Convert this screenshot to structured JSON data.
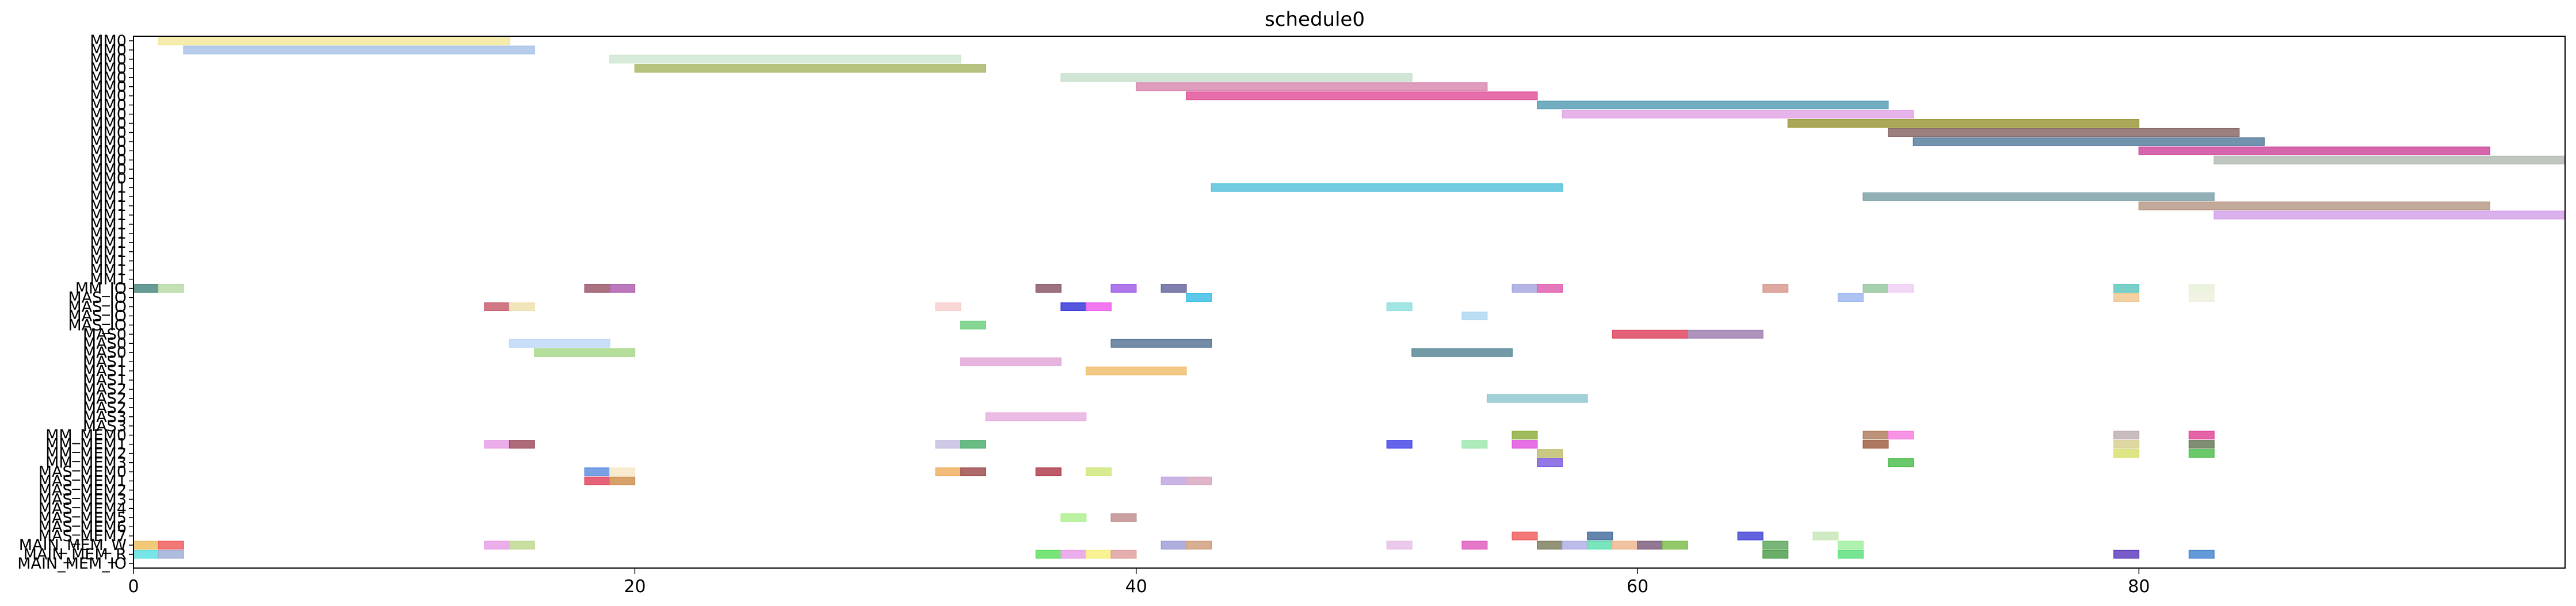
{
  "chart_data": {
    "type": "gantt",
    "title": "schedule0",
    "xlabel": "",
    "ylabel": "",
    "xlim": [
      0,
      97
    ],
    "x_ticks": [
      0,
      20,
      40,
      60,
      80
    ],
    "grid": false,
    "rows": [
      "MM0",
      "MM0",
      "MM0",
      "MM0",
      "MM0",
      "MM0",
      "MM0",
      "MM0",
      "MM0",
      "MM0",
      "MM0",
      "MM0",
      "MM0",
      "MM0",
      "MM0",
      "MM0",
      "MM1",
      "MM1",
      "MM1",
      "MM1",
      "MM1",
      "MM1",
      "MM1",
      "MM1",
      "MM1",
      "MM1",
      "MM1",
      "MM_IO",
      "MAS_IO",
      "MAS_IO",
      "MAS_IO",
      "MAS_IO",
      "MAS0",
      "MAS0",
      "MAS0",
      "MAS1",
      "MAS1",
      "MAS1",
      "MAS2",
      "MAS2",
      "MAS2",
      "MAS3",
      "MAS3",
      "MM_MEM0",
      "MM_MEM1",
      "MM_MEM2",
      "MM_MEM3",
      "MAS_MEM0",
      "MAS_MEM1",
      "MAS_MEM2",
      "MAS_MEM3",
      "MAS_MEM4",
      "MAS_MEM5",
      "MAS_MEM6",
      "MAS_MEM7",
      "MAIN_MEM_W",
      "MAIN_MEM_R",
      "MAIN_MEM_IO"
    ],
    "row_labels_visible": [
      "MM0",
      "MM0",
      "MM0",
      "MM0",
      "MM0",
      "MM0",
      "MM0",
      "MM0",
      "MM0",
      "MM0",
      "MM0",
      "MM0",
      "MM0",
      "MM0",
      "MM0",
      "MM0",
      "MM1",
      "MM1",
      "MM1",
      "MM1",
      "MM1",
      "MM1",
      "MM1",
      "MM1",
      "MM1",
      "MM1",
      "MM1",
      "MM_IO",
      "MAS_IO",
      "MAS_IO",
      "MAS_IO",
      "MAS_IO",
      "MAS0",
      "MAS0",
      "MAS0",
      "MAS1",
      "MAS1",
      "MAS1",
      "MAS2",
      "MAS2",
      "MAS2",
      "MAS3",
      "MAS3",
      "MM_MEM0",
      "MM_MEM1",
      "MM_MEM2",
      "MM_MEM3",
      "MAS_MEM0",
      "MAS_MEM1",
      "MAS_MEM2",
      "MAS_MEM3",
      "MAS_MEM4",
      "MAS_MEM5",
      "MAS_MEM6",
      "MAS_MEM7",
      "MAIN_MEM_W",
      "MAIN_MEM_R",
      "MAIN_MEM_IO"
    ],
    "bars": [
      {
        "row": 0,
        "start": 1,
        "end": 15,
        "color": "#f4e9a0"
      },
      {
        "row": 1,
        "start": 2,
        "end": 16,
        "color": "#a9c3e6"
      },
      {
        "row": 2,
        "start": 19,
        "end": 33,
        "color": "#cfe8d2"
      },
      {
        "row": 3,
        "start": 20,
        "end": 34,
        "color": "#a9b86a"
      },
      {
        "row": 4,
        "start": 37,
        "end": 51,
        "color": "#c8e0cc"
      },
      {
        "row": 5,
        "start": 40,
        "end": 54,
        "color": "#d98bb0"
      },
      {
        "row": 6,
        "start": 42,
        "end": 56,
        "color": "#e0559c"
      },
      {
        "row": 7,
        "start": 56,
        "end": 70,
        "color": "#5a9fb6"
      },
      {
        "row": 8,
        "start": 57,
        "end": 71,
        "color": "#e3a6e8"
      },
      {
        "row": 9,
        "start": 66,
        "end": 80,
        "color": "#9c9a3c"
      },
      {
        "row": 10,
        "start": 70,
        "end": 84,
        "color": "#8a6a6a"
      },
      {
        "row": 11,
        "start": 71,
        "end": 85,
        "color": "#5b7fa0"
      },
      {
        "row": 12,
        "start": 80,
        "end": 94,
        "color": "#cf4b9e"
      },
      {
        "row": 13,
        "start": 83,
        "end": 97,
        "color": "#b4bcb4"
      },
      {
        "row": 16,
        "start": 43,
        "end": 57,
        "color": "#58c3dc"
      },
      {
        "row": 17,
        "start": 69,
        "end": 83,
        "color": "#7fa1a8"
      },
      {
        "row": 18,
        "start": 80,
        "end": 94,
        "color": "#b89a88"
      },
      {
        "row": 19,
        "start": 83,
        "end": 97,
        "color": "#d4a2ea"
      },
      {
        "row": 27,
        "start": 0,
        "end": 1,
        "color": "#4f8a82"
      },
      {
        "row": 27,
        "start": 1,
        "end": 2,
        "color": "#b8dca8"
      },
      {
        "row": 27,
        "start": 18,
        "end": 19,
        "color": "#9c5a6c"
      },
      {
        "row": 27,
        "start": 19,
        "end": 20,
        "color": "#b060b0"
      },
      {
        "row": 27,
        "start": 36,
        "end": 37,
        "color": "#8c5a6c"
      },
      {
        "row": 27,
        "start": 39,
        "end": 40,
        "color": "#a060e8"
      },
      {
        "row": 27,
        "start": 41,
        "end": 42,
        "color": "#6a6aa0"
      },
      {
        "row": 27,
        "start": 55,
        "end": 56,
        "color": "#a8a8e0"
      },
      {
        "row": 27,
        "start": 56,
        "end": 57,
        "color": "#e060b0"
      },
      {
        "row": 27,
        "start": 65,
        "end": 66,
        "color": "#d89a90"
      },
      {
        "row": 27,
        "start": 69,
        "end": 70,
        "color": "#98c8a0"
      },
      {
        "row": 27,
        "start": 70,
        "end": 71,
        "color": "#f0d0f4"
      },
      {
        "row": 27,
        "start": 79,
        "end": 80,
        "color": "#60c8c0"
      },
      {
        "row": 27,
        "start": 82,
        "end": 83,
        "color": "#e8f0d8"
      },
      {
        "row": 28,
        "start": 42,
        "end": 43,
        "color": "#40c0e8"
      },
      {
        "row": 28,
        "start": 68,
        "end": 69,
        "color": "#a0b8f0"
      },
      {
        "row": 28,
        "start": 79,
        "end": 80,
        "color": "#f0c890"
      },
      {
        "row": 28,
        "start": 82,
        "end": 83,
        "color": "#f0f0e0"
      },
      {
        "row": 29,
        "start": 14,
        "end": 15,
        "color": "#c86070"
      },
      {
        "row": 29,
        "start": 15,
        "end": 16,
        "color": "#f0e0b0"
      },
      {
        "row": 29,
        "start": 32,
        "end": 33,
        "color": "#f8d0d0"
      },
      {
        "row": 29,
        "start": 37,
        "end": 38,
        "color": "#3838d8"
      },
      {
        "row": 29,
        "start": 38,
        "end": 39,
        "color": "#f060f0"
      },
      {
        "row": 29,
        "start": 50,
        "end": 51,
        "color": "#90e0e0"
      },
      {
        "row": 30,
        "start": 53,
        "end": 54,
        "color": "#b0d8f0"
      },
      {
        "row": 31,
        "start": 33,
        "end": 34,
        "color": "#70d080"
      },
      {
        "row": 32,
        "start": 59,
        "end": 62,
        "color": "#e04860"
      },
      {
        "row": 32,
        "start": 62,
        "end": 65,
        "color": "#a080b0"
      },
      {
        "row": 33,
        "start": 39,
        "end": 43,
        "color": "#5a7898"
      },
      {
        "row": 33,
        "start": 15,
        "end": 19,
        "color": "#c0d8f8"
      },
      {
        "row": 34,
        "start": 16,
        "end": 20,
        "color": "#a8d888"
      },
      {
        "row": 34,
        "start": 51,
        "end": 55,
        "color": "#5a8898"
      },
      {
        "row": 35,
        "start": 33,
        "end": 37,
        "color": "#e0a8d8"
      },
      {
        "row": 36,
        "start": 38,
        "end": 42,
        "color": "#f0c070"
      },
      {
        "row": 39,
        "start": 54,
        "end": 58,
        "color": "#90c8d0"
      },
      {
        "row": 41,
        "start": 34,
        "end": 38,
        "color": "#e8b0e0"
      },
      {
        "row": 43,
        "start": 55,
        "end": 56,
        "color": "#90b040"
      },
      {
        "row": 43,
        "start": 69,
        "end": 70,
        "color": "#b08060"
      },
      {
        "row": 43,
        "start": 70,
        "end": 71,
        "color": "#f880e0"
      },
      {
        "row": 43,
        "start": 79,
        "end": 80,
        "color": "#c0b0b0"
      },
      {
        "row": 43,
        "start": 82,
        "end": 83,
        "color": "#e04898"
      },
      {
        "row": 44,
        "start": 14,
        "end": 15,
        "color": "#e8a0e8"
      },
      {
        "row": 44,
        "start": 15,
        "end": 16,
        "color": "#a05060"
      },
      {
        "row": 44,
        "start": 32,
        "end": 33,
        "color": "#c8c0e0"
      },
      {
        "row": 44,
        "start": 33,
        "end": 34,
        "color": "#50b070"
      },
      {
        "row": 44,
        "start": 50,
        "end": 51,
        "color": "#4848e8"
      },
      {
        "row": 44,
        "start": 53,
        "end": 54,
        "color": "#a0e8b0"
      },
      {
        "row": 44,
        "start": 55,
        "end": 56,
        "color": "#e058e0"
      },
      {
        "row": 44,
        "start": 69,
        "end": 70,
        "color": "#a06048"
      },
      {
        "row": 44,
        "start": 79,
        "end": 80,
        "color": "#d8d090"
      },
      {
        "row": 44,
        "start": 82,
        "end": 83,
        "color": "#6a7a5a"
      },
      {
        "row": 45,
        "start": 56,
        "end": 57,
        "color": "#c0c070"
      },
      {
        "row": 45,
        "start": 79,
        "end": 80,
        "color": "#d8e070"
      },
      {
        "row": 45,
        "start": 82,
        "end": 83,
        "color": "#50c050"
      },
      {
        "row": 46,
        "start": 56,
        "end": 57,
        "color": "#8060e0"
      },
      {
        "row": 46,
        "start": 70,
        "end": 71,
        "color": "#50c050"
      },
      {
        "row": 47,
        "start": 18,
        "end": 19,
        "color": "#6090e0"
      },
      {
        "row": 47,
        "start": 19,
        "end": 20,
        "color": "#f8e8c8"
      },
      {
        "row": 47,
        "start": 32,
        "end": 33,
        "color": "#f0b060"
      },
      {
        "row": 47,
        "start": 33,
        "end": 34,
        "color": "#a05050"
      },
      {
        "row": 47,
        "start": 36,
        "end": 37,
        "color": "#b04050"
      },
      {
        "row": 47,
        "start": 38,
        "end": 39,
        "color": "#d0e880"
      },
      {
        "row": 48,
        "start": 18,
        "end": 19,
        "color": "#e04860"
      },
      {
        "row": 48,
        "start": 19,
        "end": 20,
        "color": "#d09050"
      },
      {
        "row": 48,
        "start": 41,
        "end": 42,
        "color": "#c0a8e0"
      },
      {
        "row": 48,
        "start": 42,
        "end": 43,
        "color": "#d8a8c0"
      },
      {
        "row": 52,
        "start": 37,
        "end": 38,
        "color": "#b0f090"
      },
      {
        "row": 52,
        "start": 39,
        "end": 40,
        "color": "#c09090"
      },
      {
        "row": 54,
        "start": 55,
        "end": 56,
        "color": "#f06060"
      },
      {
        "row": 54,
        "start": 58,
        "end": 59,
        "color": "#4870a0"
      },
      {
        "row": 54,
        "start": 64,
        "end": 65,
        "color": "#4848d8"
      },
      {
        "row": 54,
        "start": 67,
        "end": 68,
        "color": "#c8e8b8"
      },
      {
        "row": 55,
        "start": 0,
        "end": 1,
        "color": "#f0c060"
      },
      {
        "row": 55,
        "start": 1,
        "end": 2,
        "color": "#f06060"
      },
      {
        "row": 55,
        "start": 14,
        "end": 15,
        "color": "#e8a0e8"
      },
      {
        "row": 55,
        "start": 15,
        "end": 16,
        "color": "#c0d890"
      },
      {
        "row": 55,
        "start": 41,
        "end": 42,
        "color": "#a0a0d8"
      },
      {
        "row": 55,
        "start": 42,
        "end": 43,
        "color": "#d0a080"
      },
      {
        "row": 55,
        "start": 50,
        "end": 51,
        "color": "#e8c0e8"
      },
      {
        "row": 55,
        "start": 53,
        "end": 54,
        "color": "#e060c0"
      },
      {
        "row": 55,
        "start": 56,
        "end": 57,
        "color": "#808060"
      },
      {
        "row": 55,
        "start": 57,
        "end": 58,
        "color": "#b0b0e8"
      },
      {
        "row": 55,
        "start": 58,
        "end": 59,
        "color": "#60e0b0"
      },
      {
        "row": 55,
        "start": 59,
        "end": 60,
        "color": "#f0b890"
      },
      {
        "row": 55,
        "start": 60,
        "end": 61,
        "color": "#806080"
      },
      {
        "row": 55,
        "start": 61,
        "end": 62,
        "color": "#80c050"
      },
      {
        "row": 55,
        "start": 65,
        "end": 66,
        "color": "#60a860"
      },
      {
        "row": 55,
        "start": 68,
        "end": 69,
        "color": "#a0f0a0"
      },
      {
        "row": 56,
        "start": 0,
        "end": 1,
        "color": "#60e0e0"
      },
      {
        "row": 56,
        "start": 1,
        "end": 2,
        "color": "#a0b0d8"
      },
      {
        "row": 56,
        "start": 36,
        "end": 37,
        "color": "#60e060"
      },
      {
        "row": 56,
        "start": 37,
        "end": 38,
        "color": "#e8a0e8"
      },
      {
        "row": 56,
        "start": 38,
        "end": 39,
        "color": "#f8f080"
      },
      {
        "row": 56,
        "start": 39,
        "end": 40,
        "color": "#e0a0a0"
      },
      {
        "row": 56,
        "start": 65,
        "end": 66,
        "color": "#50a050"
      },
      {
        "row": 56,
        "start": 68,
        "end": 69,
        "color": "#60e080"
      },
      {
        "row": 56,
        "start": 79,
        "end": 80,
        "color": "#6040c0"
      },
      {
        "row": 56,
        "start": 82,
        "end": 83,
        "color": "#4888d0"
      }
    ]
  }
}
